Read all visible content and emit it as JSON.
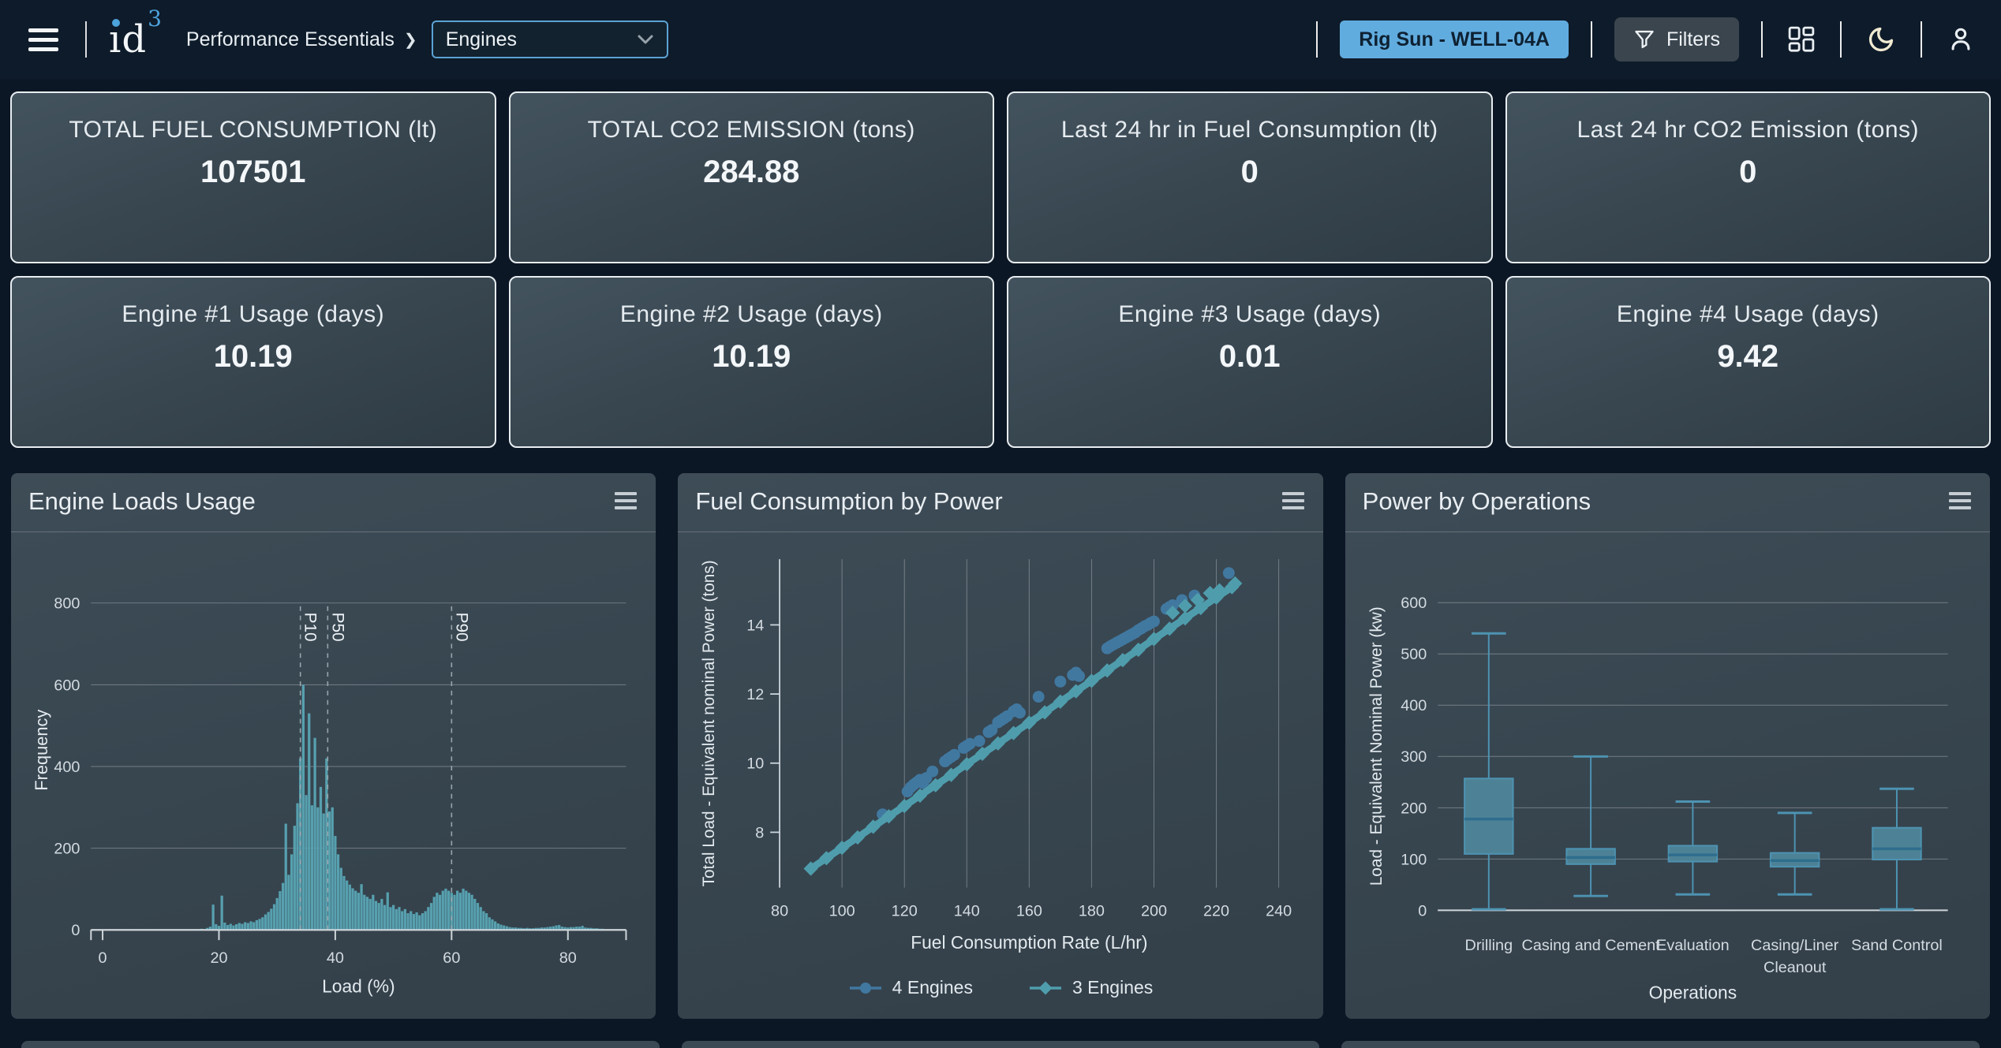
{
  "navbar": {
    "logo_text": "id",
    "logo_sup": "3",
    "breadcrumb": "Performance Essentials",
    "breadcrumb_separator": "❯",
    "section_select_value": "Engines",
    "rig_button_label": "Rig Sun - WELL-04A",
    "filters_label": "Filters"
  },
  "kpis": [
    {
      "label": "TOTAL FUEL CONSUMPTION (lt)",
      "value": "107501"
    },
    {
      "label": "TOTAL CO2 EMISSION (tons)",
      "value": "284.88"
    },
    {
      "label": "Last 24 hr in Fuel Consumption (lt)",
      "value": "0"
    },
    {
      "label": "Last 24 hr CO2 Emission (tons)",
      "value": "0"
    },
    {
      "label": "Engine #1 Usage (days)",
      "value": "10.19"
    },
    {
      "label": "Engine #2 Usage (days)",
      "value": "10.19"
    },
    {
      "label": "Engine #3 Usage (days)",
      "value": "0.01"
    },
    {
      "label": "Engine #4 Usage (days)",
      "value": "9.42"
    }
  ],
  "chart_data": [
    {
      "type": "bar",
      "title": "Engine Loads Usage",
      "xlabel": "Load (%)",
      "ylabel": "Frequency",
      "xlim": [
        -2,
        90
      ],
      "ylim": [
        0,
        880
      ],
      "xticks": [
        0,
        20,
        40,
        60,
        80
      ],
      "yticks": [
        0,
        200,
        400,
        600,
        800
      ],
      "bin_width": 0.5,
      "bar_color": "#57a0af",
      "percentiles": [
        {
          "label": "P10",
          "x": 34
        },
        {
          "label": "P50",
          "x": 38.7
        },
        {
          "label": "P90",
          "x": 60
        }
      ],
      "bins": [
        [
          17,
          3
        ],
        [
          17.5,
          2
        ],
        [
          18,
          5
        ],
        [
          18.5,
          8
        ],
        [
          19,
          62
        ],
        [
          19.5,
          14
        ],
        [
          20,
          10
        ],
        [
          20.5,
          84
        ],
        [
          21,
          18
        ],
        [
          21.5,
          12
        ],
        [
          22,
          15
        ],
        [
          22.5,
          11
        ],
        [
          23,
          14
        ],
        [
          23.5,
          17
        ],
        [
          24,
          15
        ],
        [
          24.5,
          19
        ],
        [
          25,
          17
        ],
        [
          25.5,
          21
        ],
        [
          26,
          19
        ],
        [
          26.5,
          24
        ],
        [
          27,
          27
        ],
        [
          27.5,
          31
        ],
        [
          28,
          38
        ],
        [
          28.5,
          44
        ],
        [
          29,
          52
        ],
        [
          29.5,
          63
        ],
        [
          30,
          78
        ],
        [
          30.5,
          95
        ],
        [
          31,
          115
        ],
        [
          31.5,
          260
        ],
        [
          32,
          135
        ],
        [
          32.5,
          185
        ],
        [
          33,
          255
        ],
        [
          33.5,
          310
        ],
        [
          34,
          420
        ],
        [
          34.5,
          600
        ],
        [
          35,
          330
        ],
        [
          35.5,
          530
        ],
        [
          36,
          305
        ],
        [
          36.5,
          470
        ],
        [
          37,
          300
        ],
        [
          37.5,
          350
        ],
        [
          38,
          285
        ],
        [
          38.5,
          420
        ],
        [
          39,
          290
        ],
        [
          39.5,
          300
        ],
        [
          40,
          230
        ],
        [
          40.5,
          185
        ],
        [
          41,
          152
        ],
        [
          41.5,
          132
        ],
        [
          42,
          121
        ],
        [
          42.5,
          111
        ],
        [
          43,
          102
        ],
        [
          43.5,
          96
        ],
        [
          44,
          91
        ],
        [
          44.5,
          112
        ],
        [
          45,
          86
        ],
        [
          45.5,
          81
        ],
        [
          46,
          76
        ],
        [
          46.5,
          86
        ],
        [
          47,
          71
        ],
        [
          47.5,
          66
        ],
        [
          48,
          76
        ],
        [
          48.5,
          61
        ],
        [
          49,
          92
        ],
        [
          49.5,
          56
        ],
        [
          50,
          61
        ],
        [
          50.5,
          51
        ],
        [
          51,
          56
        ],
        [
          51.5,
          46
        ],
        [
          52,
          51
        ],
        [
          52.5,
          41
        ],
        [
          53,
          46
        ],
        [
          53.5,
          39
        ],
        [
          54,
          43
        ],
        [
          54.5,
          36
        ],
        [
          55,
          41
        ],
        [
          55.5,
          46
        ],
        [
          56,
          56
        ],
        [
          56.5,
          66
        ],
        [
          57,
          81
        ],
        [
          57.5,
          91
        ],
        [
          58,
          86
        ],
        [
          58.5,
          96
        ],
        [
          59,
          101
        ],
        [
          59.5,
          96
        ],
        [
          60,
          91
        ],
        [
          60.5,
          86
        ],
        [
          61,
          96
        ],
        [
          61.5,
          91
        ],
        [
          62,
          101
        ],
        [
          62.5,
          96
        ],
        [
          63,
          91
        ],
        [
          63.5,
          86
        ],
        [
          64,
          76
        ],
        [
          64.5,
          66
        ],
        [
          65,
          56
        ],
        [
          65.5,
          46
        ],
        [
          66,
          41
        ],
        [
          66.5,
          31
        ],
        [
          67,
          26
        ],
        [
          67.5,
          21
        ],
        [
          68,
          16
        ],
        [
          68.5,
          13
        ],
        [
          69,
          11
        ],
        [
          69.5,
          9
        ],
        [
          70,
          7
        ],
        [
          70.5,
          6
        ],
        [
          71,
          6
        ],
        [
          71.5,
          5
        ],
        [
          72,
          5
        ],
        [
          72.5,
          4
        ],
        [
          73,
          5
        ],
        [
          73.5,
          4
        ],
        [
          74,
          4
        ],
        [
          74.5,
          5
        ],
        [
          75,
          5
        ],
        [
          75.5,
          6
        ],
        [
          76,
          6
        ],
        [
          76.5,
          7
        ],
        [
          77,
          8
        ],
        [
          77.5,
          9
        ],
        [
          78,
          11
        ],
        [
          78.5,
          12
        ],
        [
          79,
          8
        ],
        [
          79.5,
          7
        ],
        [
          80,
          6
        ],
        [
          80.5,
          7
        ],
        [
          81,
          7
        ],
        [
          81.5,
          8
        ],
        [
          82,
          8
        ],
        [
          82.5,
          10
        ],
        [
          83,
          6
        ],
        [
          83.5,
          5
        ],
        [
          84,
          5
        ],
        [
          84.5,
          4
        ],
        [
          85,
          4
        ],
        [
          85.5,
          3
        ],
        [
          86,
          3
        ]
      ]
    },
    {
      "type": "scatter",
      "title": "Fuel Consumption by Power",
      "xlabel": "Fuel Consumption Rate (L/hr)",
      "ylabel": "Total Load - Equivalent nominal Power (tons)",
      "xlim": [
        72,
        244
      ],
      "ylim": [
        6.4,
        15.9
      ],
      "xticks": [
        80,
        100,
        120,
        140,
        160,
        180,
        200,
        220,
        240
      ],
      "yticks": [
        8,
        10,
        12,
        14
      ],
      "series": [
        {
          "name": "4 Engines",
          "marker": "circle",
          "color": "#4178a0",
          "line": false,
          "points": [
            [
              113,
              8.52
            ],
            [
              121,
              9.18
            ],
            [
              122,
              9.3
            ],
            [
              123,
              9.38
            ],
            [
              124,
              9.45
            ],
            [
              125,
              9.52
            ],
            [
              126,
              9.42
            ],
            [
              127,
              9.57
            ],
            [
              129,
              9.76
            ],
            [
              133,
              10.05
            ],
            [
              134,
              10.12
            ],
            [
              135,
              10.18
            ],
            [
              136,
              10.24
            ],
            [
              139,
              10.44
            ],
            [
              140,
              10.5
            ],
            [
              141,
              10.56
            ],
            [
              144,
              10.64
            ],
            [
              147,
              10.9
            ],
            [
              148,
              10.96
            ],
            [
              150,
              11.18
            ],
            [
              151,
              11.24
            ],
            [
              152,
              11.3
            ],
            [
              153,
              11.36
            ],
            [
              155,
              11.5
            ],
            [
              156,
              11.56
            ],
            [
              157,
              11.46
            ],
            [
              163,
              11.92
            ],
            [
              170,
              12.36
            ],
            [
              174,
              12.55
            ],
            [
              175,
              12.62
            ],
            [
              176,
              12.52
            ],
            [
              185,
              13.32
            ],
            [
              186,
              13.38
            ],
            [
              187,
              13.43
            ],
            [
              188,
              13.48
            ],
            [
              189,
              13.53
            ],
            [
              190,
              13.58
            ],
            [
              191,
              13.63
            ],
            [
              192,
              13.68
            ],
            [
              193,
              13.73
            ],
            [
              194,
              13.78
            ],
            [
              195,
              13.85
            ],
            [
              196,
              13.9
            ],
            [
              197,
              13.96
            ],
            [
              198,
              14.0
            ],
            [
              199,
              14.06
            ],
            [
              200,
              14.1
            ],
            [
              204,
              14.46
            ],
            [
              205,
              14.52
            ],
            [
              206,
              14.57
            ],
            [
              209,
              14.72
            ],
            [
              213,
              14.85
            ],
            [
              224,
              15.5
            ]
          ],
          "outliers": []
        },
        {
          "name": "3 Engines",
          "marker": "diamond",
          "color": "#4f9dac",
          "line": true,
          "points": [
            [
              90,
              6.95
            ],
            [
              95,
              7.25
            ],
            [
              100,
              7.55
            ],
            [
              105,
              7.85
            ],
            [
              110,
              8.16
            ],
            [
              115,
              8.46
            ],
            [
              120,
              8.76
            ],
            [
              125,
              9.06
            ],
            [
              130,
              9.36
            ],
            [
              135,
              9.66
            ],
            [
              140,
              9.97
            ],
            [
              145,
              10.27
            ],
            [
              150,
              10.57
            ],
            [
              155,
              10.87
            ],
            [
              160,
              11.17
            ],
            [
              165,
              11.47
            ],
            [
              170,
              11.78
            ],
            [
              175,
              12.08
            ],
            [
              180,
              12.38
            ],
            [
              185,
              12.68
            ],
            [
              190,
              12.98
            ],
            [
              195,
              13.28
            ],
            [
              200,
              13.59
            ],
            [
              205,
              13.89
            ],
            [
              210,
              14.19
            ],
            [
              215,
              14.49
            ],
            [
              220,
              14.79
            ],
            [
              225,
              15.09
            ]
          ],
          "outliers": [
            [
              206,
              14.35
            ],
            [
              210,
              14.55
            ],
            [
              214,
              14.72
            ],
            [
              218,
              14.92
            ],
            [
              221,
              15.0
            ],
            [
              226,
              15.2
            ]
          ]
        }
      ]
    },
    {
      "type": "box",
      "title": "Power by Operations",
      "xlabel": "Operations",
      "ylabel": "Load - Equivalent Nominal Power (kw)",
      "ylim": [
        -20,
        660
      ],
      "yticks": [
        0,
        100,
        200,
        300,
        400,
        500,
        600
      ],
      "categories": [
        "Drilling",
        "Casing and Cement",
        "Evaluation",
        "Casing/Liner\nCleanout",
        "Sand Control"
      ],
      "boxes": [
        {
          "min": 2,
          "q1": 110,
          "median": 178,
          "q3": 257,
          "max": 540
        },
        {
          "min": 28,
          "q1": 90,
          "median": 103,
          "q3": 120,
          "max": 300
        },
        {
          "min": 31,
          "q1": 95,
          "median": 108,
          "q3": 126,
          "max": 212
        },
        {
          "min": 31,
          "q1": 85,
          "median": 97,
          "q3": 112,
          "max": 190
        },
        {
          "min": 2,
          "q1": 99,
          "median": 120,
          "q3": 161,
          "max": 237
        }
      ],
      "box_fill": "#4d8296",
      "box_stroke": "#4d93b2",
      "median_color": "#2e6d8d"
    }
  ]
}
